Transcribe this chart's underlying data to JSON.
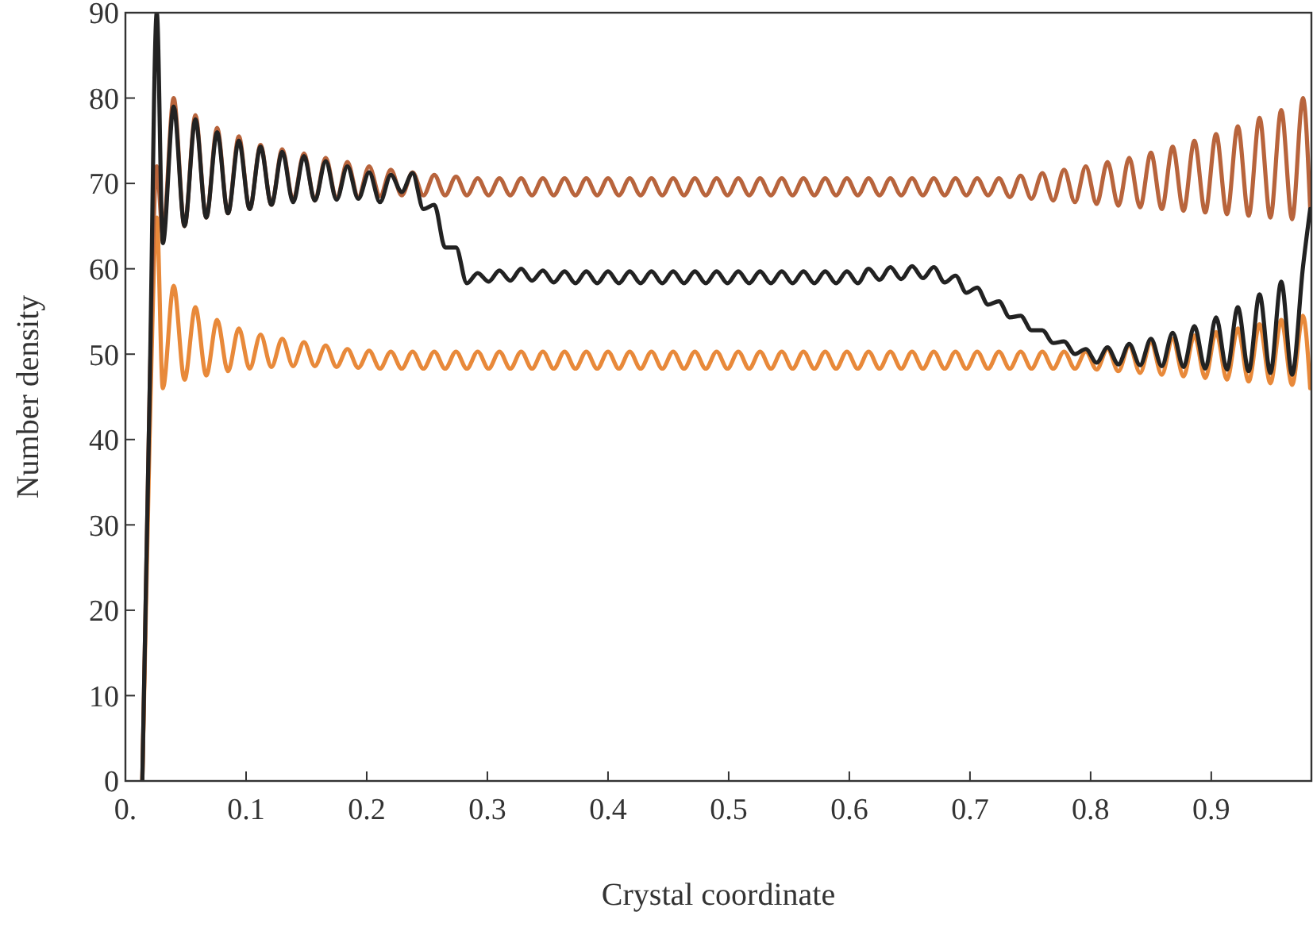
{
  "chart_data": {
    "type": "line",
    "xlabel": "Crystal coordinate",
    "ylabel": "Number density",
    "xlim": [
      0,
      0.983
    ],
    "ylim": [
      0,
      90
    ],
    "xticks": [
      {
        "value": 0,
        "label": "0."
      },
      0.1,
      0.2,
      0.3,
      0.4,
      0.5,
      0.6,
      0.7,
      0.8,
      0.9
    ],
    "yticks": [
      0,
      10,
      20,
      30,
      40,
      50,
      60,
      70,
      80,
      90
    ],
    "grid": false,
    "marker": "none",
    "line_style": "solid",
    "x": [
      0.014,
      0.02,
      0.026,
      0.031,
      0.04,
      0.049,
      0.058,
      0.067,
      0.076,
      0.085,
      0.094,
      0.103,
      0.112,
      0.121,
      0.13,
      0.139,
      0.148,
      0.157,
      0.166,
      0.175,
      0.184,
      0.193,
      0.202,
      0.211,
      0.22,
      0.229,
      0.238,
      0.247,
      0.256,
      0.265,
      0.274,
      0.283,
      0.292,
      0.301,
      0.31,
      0.319,
      0.328,
      0.337,
      0.346,
      0.355,
      0.364,
      0.373,
      0.382,
      0.391,
      0.4,
      0.409,
      0.418,
      0.427,
      0.436,
      0.445,
      0.454,
      0.463,
      0.472,
      0.481,
      0.49,
      0.499,
      0.508,
      0.517,
      0.526,
      0.535,
      0.544,
      0.553,
      0.562,
      0.571,
      0.58,
      0.589,
      0.598,
      0.607,
      0.616,
      0.625,
      0.634,
      0.643,
      0.652,
      0.661,
      0.67,
      0.679,
      0.688,
      0.697,
      0.706,
      0.715,
      0.724,
      0.733,
      0.742,
      0.751,
      0.76,
      0.769,
      0.778,
      0.787,
      0.796,
      0.805,
      0.814,
      0.823,
      0.832,
      0.841,
      0.85,
      0.859,
      0.868,
      0.877,
      0.886,
      0.895,
      0.904,
      0.913,
      0.922,
      0.931,
      0.94,
      0.949,
      0.958,
      0.967,
      0.976,
      0.982
    ],
    "series": [
      {
        "color": "#e8893a",
        "values": [
          0,
          40,
          66,
          46,
          58,
          47,
          55.5,
          47.5,
          54,
          48,
          53,
          48.3,
          52.3,
          48.5,
          51.8,
          48.6,
          51.4,
          48.6,
          51,
          48.5,
          50.6,
          48.4,
          50.4,
          48.3,
          50.3,
          48.3,
          50.3,
          48.3,
          50.3,
          48.3,
          50.3,
          48.3,
          50.3,
          48.3,
          50.3,
          48.3,
          50.3,
          48.3,
          50.3,
          48.3,
          50.3,
          48.3,
          50.3,
          48.3,
          50.3,
          48.3,
          50.3,
          48.3,
          50.3,
          48.3,
          50.3,
          48.3,
          50.3,
          48.3,
          50.3,
          48.3,
          50.3,
          48.3,
          50.3,
          48.3,
          50.3,
          48.3,
          50.3,
          48.3,
          50.3,
          48.3,
          50.3,
          48.3,
          50.3,
          48.3,
          50.3,
          48.3,
          50.3,
          48.3,
          50.3,
          48.3,
          50.3,
          48.3,
          50.3,
          48.3,
          50.3,
          48.3,
          50.3,
          48.3,
          50.3,
          48.3,
          50.3,
          48.3,
          50.3,
          48.2,
          50.6,
          48,
          51,
          47.8,
          51.4,
          47.6,
          51.8,
          47.4,
          52.2,
          47.2,
          52.6,
          47,
          53,
          46.8,
          53.5,
          46.6,
          54,
          46.4,
          54.5,
          46
        ]
      },
      {
        "color": "#b8643c",
        "values": [
          0,
          45,
          72,
          64,
          80,
          65,
          78,
          66,
          76.5,
          66.5,
          75.5,
          67,
          74.5,
          67.5,
          74,
          68,
          73.5,
          68,
          73,
          68.2,
          72.5,
          68.4,
          72,
          68.5,
          71.6,
          68.6,
          71.3,
          68.6,
          71,
          68.6,
          70.8,
          68.6,
          70.6,
          68.6,
          70.6,
          68.6,
          70.6,
          68.6,
          70.6,
          68.6,
          70.6,
          68.6,
          70.6,
          68.6,
          70.6,
          68.6,
          70.6,
          68.6,
          70.6,
          68.6,
          70.6,
          68.6,
          70.6,
          68.6,
          70.6,
          68.6,
          70.6,
          68.6,
          70.6,
          68.6,
          70.6,
          68.6,
          70.6,
          68.6,
          70.6,
          68.6,
          70.6,
          68.6,
          70.6,
          68.6,
          70.6,
          68.6,
          70.6,
          68.6,
          70.6,
          68.6,
          70.6,
          68.6,
          70.6,
          68.6,
          70.6,
          68.4,
          70.9,
          68.2,
          71.2,
          68,
          71.6,
          67.8,
          72,
          67.6,
          72.5,
          67.4,
          73,
          67.2,
          73.6,
          67,
          74.3,
          66.8,
          75,
          66.6,
          75.8,
          66.4,
          76.7,
          66.2,
          77.7,
          66,
          78.6,
          65.8,
          80,
          67
        ]
      },
      {
        "color": "#222222",
        "values": [
          0,
          45,
          90,
          63,
          79,
          65,
          77.5,
          66,
          76,
          66.5,
          75,
          67,
          74.3,
          67.5,
          73.7,
          67.8,
          73.2,
          68,
          72.6,
          68.1,
          72,
          68.2,
          71.3,
          67.8,
          71,
          69,
          71.2,
          67,
          67.5,
          62.5,
          62.5,
          58.3,
          59.5,
          58.5,
          59.8,
          58.6,
          60,
          58.6,
          59.8,
          58.4,
          59.7,
          58.3,
          59.7,
          58.3,
          59.7,
          58.3,
          59.7,
          58.3,
          59.7,
          58.3,
          59.7,
          58.3,
          59.7,
          58.3,
          59.7,
          58.3,
          59.7,
          58.3,
          59.7,
          58.3,
          59.7,
          58.3,
          59.7,
          58.3,
          59.7,
          58.3,
          59.7,
          58.3,
          60,
          58.7,
          60.2,
          58.8,
          60.3,
          58.9,
          60.2,
          58.4,
          59.2,
          57.2,
          57.8,
          55.8,
          56.2,
          54.3,
          54.5,
          52.8,
          52.8,
          51.3,
          51.5,
          50,
          50.6,
          49,
          50.8,
          48.8,
          51.2,
          48.7,
          51.8,
          48.6,
          52.5,
          48.5,
          53.3,
          48.3,
          54.3,
          48.2,
          55.5,
          48,
          57,
          47.8,
          58.5,
          47.6,
          60.2,
          67
        ]
      }
    ]
  }
}
